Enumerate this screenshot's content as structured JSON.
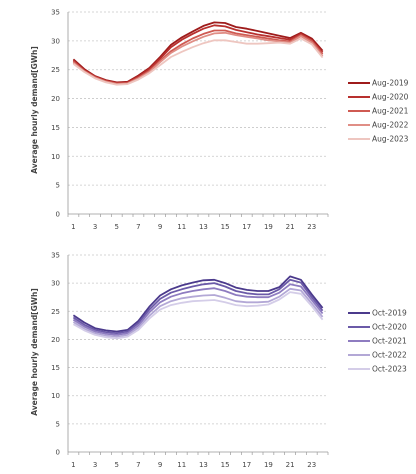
{
  "chart_data": [
    {
      "type": "line",
      "ylabel": "Average hourly demand[GWh]",
      "ylim": [
        0,
        35
      ],
      "yticks": [
        0,
        5,
        10,
        15,
        20,
        25,
        30,
        35
      ],
      "grid": true,
      "legend_position": "right",
      "x": [
        1,
        2,
        3,
        4,
        5,
        6,
        7,
        8,
        9,
        10,
        11,
        12,
        13,
        14,
        15,
        16,
        17,
        18,
        19,
        20,
        21,
        22,
        23,
        24
      ],
      "xtick_labels": [
        "1",
        "3",
        "5",
        "7",
        "9",
        "11",
        "13",
        "15",
        "17",
        "19",
        "21",
        "23"
      ],
      "series": [
        {
          "name": "Aug-2019",
          "color": "#9e1b1b",
          "values": [
            26.8,
            25.1,
            23.9,
            23.2,
            22.8,
            22.9,
            24.0,
            25.3,
            27.2,
            29.3,
            30.6,
            31.6,
            32.6,
            33.2,
            33.1,
            32.4,
            32.1,
            31.7,
            31.3,
            30.9,
            30.5,
            31.4,
            30.4,
            28.3
          ]
        },
        {
          "name": "Aug-2020",
          "color": "#b8302e",
          "values": [
            26.6,
            24.9,
            23.8,
            23.1,
            22.7,
            22.8,
            23.8,
            25.1,
            26.9,
            28.9,
            30.2,
            31.2,
            32.1,
            32.7,
            32.5,
            31.9,
            31.5,
            31.1,
            30.8,
            30.5,
            30.2,
            31.2,
            30.1,
            28.0
          ]
        },
        {
          "name": "Aug-2021",
          "color": "#cf5a52",
          "values": [
            26.4,
            24.8,
            23.7,
            23.0,
            22.6,
            22.7,
            23.6,
            24.8,
            26.5,
            28.2,
            29.4,
            30.4,
            31.2,
            31.8,
            31.8,
            31.3,
            31.0,
            30.7,
            30.4,
            30.1,
            29.9,
            31.0,
            30.0,
            27.7
          ]
        },
        {
          "name": "Aug-2022",
          "color": "#e08e86",
          "values": [
            26.2,
            24.7,
            23.6,
            22.9,
            22.5,
            22.6,
            23.5,
            24.6,
            26.3,
            27.9,
            29.0,
            29.9,
            30.7,
            31.3,
            31.4,
            31.0,
            30.7,
            30.4,
            30.1,
            29.9,
            29.7,
            30.8,
            29.7,
            27.4
          ]
        },
        {
          "name": "Aug-2023",
          "color": "#eec6c0",
          "values": [
            26.0,
            24.6,
            23.5,
            22.8,
            22.4,
            22.5,
            23.3,
            24.4,
            25.8,
            27.2,
            28.1,
            28.9,
            29.6,
            30.1,
            30.1,
            29.8,
            29.5,
            29.5,
            29.6,
            29.7,
            29.5,
            30.4,
            29.4,
            27.1
          ]
        }
      ]
    },
    {
      "type": "line",
      "ylabel": "Average hourly demand[GWh]",
      "ylim": [
        0,
        35
      ],
      "yticks": [
        0,
        5,
        10,
        15,
        20,
        25,
        30,
        35
      ],
      "grid": true,
      "legend_position": "right",
      "x": [
        1,
        2,
        3,
        4,
        5,
        6,
        7,
        8,
        9,
        10,
        11,
        12,
        13,
        14,
        15,
        16,
        17,
        18,
        19,
        20,
        21,
        22,
        23,
        24
      ],
      "xtick_labels": [
        "1",
        "3",
        "5",
        "7",
        "9",
        "11",
        "13",
        "15",
        "17",
        "19",
        "21",
        "23"
      ],
      "series": [
        {
          "name": "Oct-2019",
          "color": "#4b3a8c",
          "values": [
            24.3,
            23.0,
            22.0,
            21.6,
            21.4,
            21.7,
            23.3,
            25.8,
            27.8,
            28.9,
            29.6,
            30.1,
            30.5,
            30.6,
            30.0,
            29.2,
            28.8,
            28.6,
            28.6,
            29.3,
            31.2,
            30.6,
            28.0,
            25.6
          ]
        },
        {
          "name": "Oct-2020",
          "color": "#6b5aa8",
          "values": [
            23.9,
            22.6,
            21.7,
            21.3,
            21.1,
            21.4,
            22.9,
            25.3,
            27.2,
            28.3,
            28.9,
            29.4,
            29.8,
            30.0,
            29.4,
            28.6,
            28.2,
            28.0,
            28.0,
            28.9,
            30.6,
            30.1,
            27.5,
            25.1
          ]
        },
        {
          "name": "Oct-2021",
          "color": "#8e7cc0",
          "values": [
            23.5,
            22.3,
            21.4,
            21.0,
            20.8,
            21.1,
            22.5,
            24.8,
            26.6,
            27.6,
            28.2,
            28.6,
            28.9,
            29.1,
            28.6,
            27.9,
            27.6,
            27.5,
            27.5,
            28.3,
            29.8,
            29.4,
            27.0,
            24.6
          ]
        },
        {
          "name": "Oct-2022",
          "color": "#b3a8d6",
          "values": [
            23.1,
            21.9,
            21.1,
            20.7,
            20.5,
            20.8,
            22.1,
            24.2,
            25.9,
            26.8,
            27.3,
            27.6,
            27.8,
            27.9,
            27.4,
            26.8,
            26.6,
            26.6,
            26.7,
            27.6,
            29.0,
            28.7,
            26.4,
            24.0
          ]
        },
        {
          "name": "Oct-2023",
          "color": "#d4cde8",
          "values": [
            22.7,
            21.6,
            20.8,
            20.4,
            20.2,
            20.5,
            21.7,
            23.7,
            25.3,
            26.1,
            26.5,
            26.8,
            26.9,
            27.0,
            26.6,
            26.1,
            25.9,
            26.0,
            26.2,
            27.1,
            28.4,
            28.1,
            25.9,
            23.5
          ]
        }
      ]
    }
  ]
}
